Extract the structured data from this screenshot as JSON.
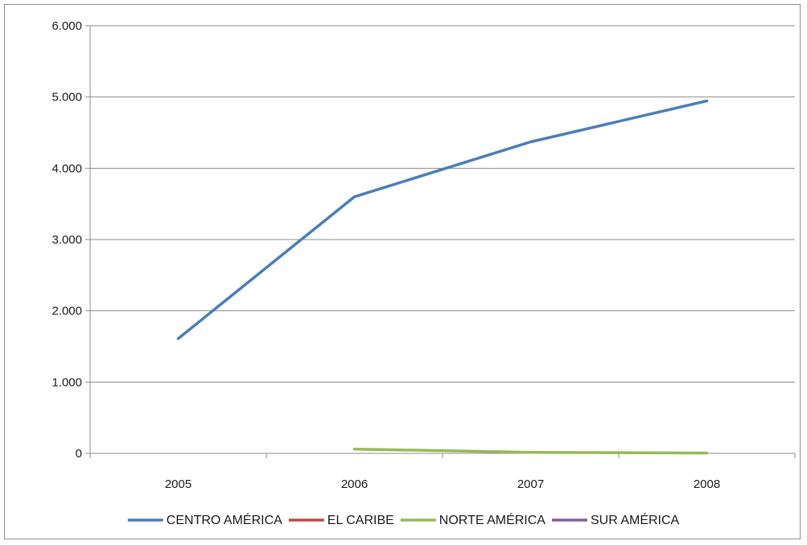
{
  "chart_data": {
    "type": "line",
    "title": "",
    "xlabel": "",
    "ylabel": "",
    "x": [
      "2005",
      "2006",
      "2007",
      "2008"
    ],
    "ylim": [
      0,
      6000
    ],
    "yticks": [
      0,
      1000,
      2000,
      3000,
      4000,
      5000,
      6000
    ],
    "ytick_labels": [
      "0",
      "1.000",
      "2.000",
      "3.000",
      "4.000",
      "5.000",
      "6.000"
    ],
    "grid": true,
    "legend_position": "bottom",
    "series": [
      {
        "name": "CENTRO AMÉRICA",
        "color": "#4a7ebb",
        "values": [
          1610,
          3600,
          4370,
          4945
        ]
      },
      {
        "name": "EL CARIBE",
        "color": "#be4b48",
        "values": [
          null,
          null,
          null,
          null
        ]
      },
      {
        "name": "NORTE AMÉRICA",
        "color": "#98b954",
        "values": [
          null,
          60,
          15,
          5
        ]
      },
      {
        "name": "SUR AMÉRICA",
        "color": "#7d60a0",
        "values": [
          null,
          null,
          null,
          null
        ]
      }
    ]
  }
}
